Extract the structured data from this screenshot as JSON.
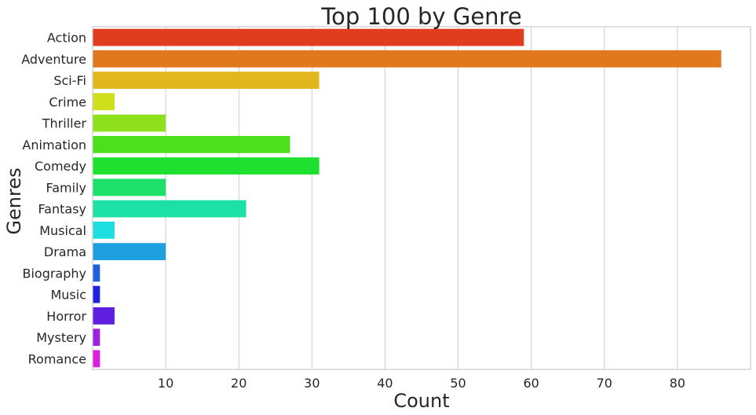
{
  "chart_data": {
    "type": "bar",
    "orientation": "horizontal",
    "title": "Top 100 by Genre",
    "xlabel": "Count",
    "ylabel": "Genres",
    "xlim": [
      0,
      90
    ],
    "xticks": [
      10,
      20,
      30,
      40,
      50,
      60,
      70,
      80
    ],
    "grid": "vertical",
    "categories": [
      "Action",
      "Adventure",
      "Sci-Fi",
      "Crime",
      "Thriller",
      "Animation",
      "Comedy",
      "Family",
      "Fantasy",
      "Musical",
      "Drama",
      "Biography",
      "Music",
      "Horror",
      "Mystery",
      "Romance"
    ],
    "values": [
      59,
      86,
      31,
      3,
      10,
      27,
      31,
      10,
      21,
      3,
      10,
      1,
      1,
      3,
      1,
      1
    ],
    "colors": [
      "#e23c1f",
      "#e2781d",
      "#e0b81e",
      "#cfe01a",
      "#8de01b",
      "#4ce01c",
      "#1de02f",
      "#1de06b",
      "#1de0a7",
      "#1ddfe0",
      "#1e9fe0",
      "#1e5fe0",
      "#1f22e0",
      "#5e1fe0",
      "#9e1fe0",
      "#dd1fe0"
    ]
  }
}
